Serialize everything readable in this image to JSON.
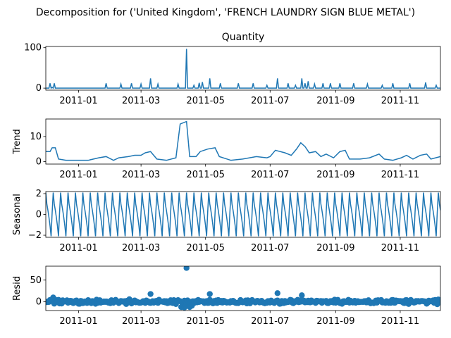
{
  "figure": {
    "suptitle": "Decomposition for ('United Kingdom', 'FRENCH LAUNDRY SIGN BLUE METAL')",
    "line_color": "#1f77b4",
    "x_start": "2010-12-01",
    "x_end": "2011-12-09",
    "x_tick_labels": [
      "2011-01",
      "2011-03",
      "2011-05",
      "2011-07",
      "2011-09",
      "2011-11"
    ],
    "x_tick_dates": [
      "2011-01-01",
      "2011-03-01",
      "2011-05-01",
      "2011-07-01",
      "2011-09-01",
      "2011-11-01"
    ]
  },
  "chart_data": [
    {
      "type": "line",
      "title": "Quantity",
      "ylabel": "",
      "ylim": [
        -5,
        103
      ],
      "y_ticks": [
        0,
        100
      ],
      "x": [
        "2010-12-05",
        "2010-12-07",
        "2010-12-09",
        "2011-01-27",
        "2011-02-10",
        "2011-02-20",
        "2011-03-01",
        "2011-03-10",
        "2011-03-17",
        "2011-04-05",
        "2011-04-13",
        "2011-04-20",
        "2011-04-25",
        "2011-04-28",
        "2011-05-05",
        "2011-05-15",
        "2011-06-01",
        "2011-06-15",
        "2011-06-28",
        "2011-07-08",
        "2011-07-18",
        "2011-07-25",
        "2011-07-31",
        "2011-08-03",
        "2011-08-06",
        "2011-08-12",
        "2011-08-20",
        "2011-08-27",
        "2011-09-05",
        "2011-09-18",
        "2011-10-01",
        "2011-10-15",
        "2011-10-25",
        "2011-11-10",
        "2011-11-25",
        "2011-12-05"
      ],
      "values": [
        12,
        2,
        12,
        12,
        10,
        12,
        10,
        24,
        10,
        10,
        97,
        7,
        13,
        15,
        24,
        12,
        12,
        12,
        7,
        24,
        12,
        7,
        24,
        12,
        17,
        10,
        12,
        12,
        12,
        12,
        10,
        7,
        12,
        12,
        14,
        7
      ],
      "baseline": 0
    },
    {
      "type": "line",
      "title": "",
      "ylabel": "Trend",
      "ylim": [
        -1,
        17
      ],
      "y_ticks": [
        0,
        10
      ],
      "points": [
        [
          "2010-12-01",
          4
        ],
        [
          "2010-12-05",
          4
        ],
        [
          "2010-12-07",
          5.5
        ],
        [
          "2010-12-10",
          5.5
        ],
        [
          "2010-12-13",
          1
        ],
        [
          "2010-12-20",
          0.5
        ],
        [
          "2011-01-10",
          0.5
        ],
        [
          "2011-01-20",
          1.5
        ],
        [
          "2011-01-27",
          2
        ],
        [
          "2011-02-03",
          0.5
        ],
        [
          "2011-02-08",
          1.5
        ],
        [
          "2011-02-17",
          2
        ],
        [
          "2011-02-23",
          2.5
        ],
        [
          "2011-03-01",
          2.5
        ],
        [
          "2011-03-05",
          3.5
        ],
        [
          "2011-03-10",
          4
        ],
        [
          "2011-03-16",
          1
        ],
        [
          "2011-03-25",
          0.5
        ],
        [
          "2011-04-03",
          1.5
        ],
        [
          "2011-04-07",
          15
        ],
        [
          "2011-04-13",
          16
        ],
        [
          "2011-04-16",
          2
        ],
        [
          "2011-04-22",
          2
        ],
        [
          "2011-04-26",
          4
        ],
        [
          "2011-05-03",
          5
        ],
        [
          "2011-05-10",
          5.5
        ],
        [
          "2011-05-14",
          2
        ],
        [
          "2011-05-25",
          0.5
        ],
        [
          "2011-06-05",
          1
        ],
        [
          "2011-06-18",
          2
        ],
        [
          "2011-06-28",
          1.5
        ],
        [
          "2011-07-01",
          2
        ],
        [
          "2011-07-06",
          4.5
        ],
        [
          "2011-07-15",
          3.5
        ],
        [
          "2011-07-21",
          2.5
        ],
        [
          "2011-07-26",
          5
        ],
        [
          "2011-07-30",
          7.5
        ],
        [
          "2011-08-03",
          6
        ],
        [
          "2011-08-07",
          3.5
        ],
        [
          "2011-08-13",
          4
        ],
        [
          "2011-08-18",
          2
        ],
        [
          "2011-08-23",
          3
        ],
        [
          "2011-08-30",
          1.5
        ],
        [
          "2011-09-05",
          4
        ],
        [
          "2011-09-10",
          4.5
        ],
        [
          "2011-09-14",
          1
        ],
        [
          "2011-09-24",
          1
        ],
        [
          "2011-10-03",
          1.5
        ],
        [
          "2011-10-12",
          3
        ],
        [
          "2011-10-17",
          1
        ],
        [
          "2011-10-25",
          0.5
        ],
        [
          "2011-11-02",
          1.5
        ],
        [
          "2011-11-07",
          2.5
        ],
        [
          "2011-11-13",
          1
        ],
        [
          "2011-11-20",
          2.5
        ],
        [
          "2011-11-26",
          3
        ],
        [
          "2011-11-30",
          1
        ],
        [
          "2011-12-09",
          2
        ]
      ]
    },
    {
      "type": "line",
      "title": "",
      "ylabel": "Seasonal",
      "ylim": [
        -2.2,
        2.2
      ],
      "y_ticks": [
        -2,
        0,
        2
      ],
      "period_days": 7,
      "cycle": [
        2.1,
        1.0,
        0.4,
        -0.3,
        -1.1,
        -2.1,
        0.2
      ]
    },
    {
      "type": "scatter",
      "title": "",
      "ylabel": "Resid",
      "ylim": [
        -20,
        82
      ],
      "y_ticks": [
        0,
        50
      ],
      "outliers": [
        [
          "2011-04-13",
          78
        ],
        [
          "2011-03-10",
          18
        ],
        [
          "2011-05-05",
          18
        ],
        [
          "2011-07-08",
          20
        ],
        [
          "2011-07-31",
          15
        ],
        [
          "2011-04-08",
          -12
        ],
        [
          "2011-04-11",
          -13
        ],
        [
          "2011-04-16",
          -12
        ],
        [
          "2011-04-18",
          -9
        ],
        [
          "2011-04-03",
          -5
        ],
        [
          "2010-12-08",
          10
        ]
      ],
      "noise_amplitude": 6
    }
  ]
}
